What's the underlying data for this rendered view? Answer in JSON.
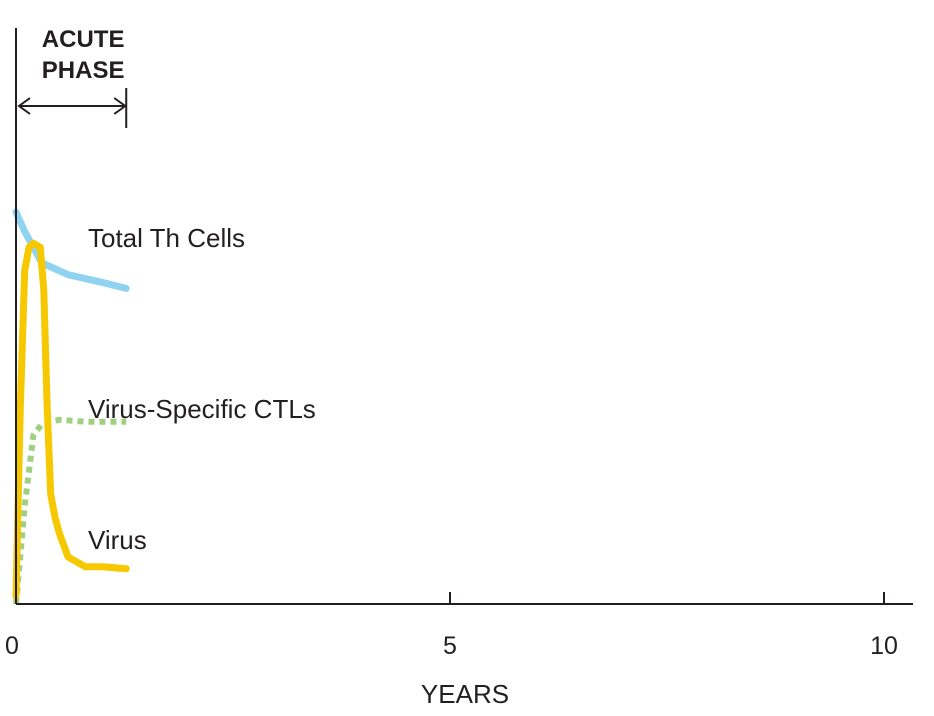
{
  "chart_data": {
    "type": "line",
    "xlabel": "YEARS",
    "ylabel": "",
    "xlim": [
      0,
      10.3
    ],
    "ylim": [
      0,
      100
    ],
    "xticks": [
      {
        "value": 0,
        "label": "0"
      },
      {
        "value": 5,
        "label": "5"
      },
      {
        "value": 10,
        "label": "10"
      }
    ],
    "phase": {
      "label_lines": [
        "ACUTE",
        "PHASE"
      ],
      "start": 0,
      "end": 1.27
    },
    "series": [
      {
        "name": "Total Th Cells",
        "color": "#8fd3f0",
        "style": "solid",
        "x": [
          0,
          0.1,
          0.3,
          0.6,
          1.0,
          1.27
        ],
        "y": [
          100,
          95,
          87,
          84,
          82,
          80.5
        ]
      },
      {
        "name": "Virus-Specific CTLs",
        "color": "#9fd080",
        "style": "dotted",
        "x": [
          0,
          0.1,
          0.2,
          0.3,
          0.5,
          0.8,
          1.27
        ],
        "y": [
          0,
          25,
          43,
          46,
          47,
          46.5,
          46.5
        ]
      },
      {
        "name": "Virus",
        "color": "#f6c800",
        "style": "solid",
        "x": [
          0,
          0.05,
          0.1,
          0.15,
          0.2,
          0.28,
          0.32,
          0.36,
          0.4,
          0.45,
          0.5,
          0.6,
          0.8,
          1.0,
          1.27
        ],
        "y": [
          2,
          50,
          85,
          91,
          92,
          91,
          80,
          50,
          28,
          22,
          18,
          12,
          9.5,
          9.5,
          9
        ]
      }
    ]
  }
}
